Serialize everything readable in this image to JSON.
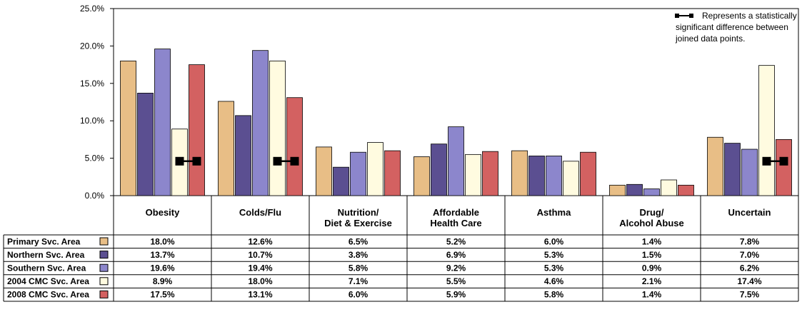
{
  "chart_data": {
    "type": "bar",
    "categories": [
      [
        "Obesity"
      ],
      [
        "Colds/Flu"
      ],
      [
        "Nutrition/",
        "Diet & Exercise"
      ],
      [
        "Affordable",
        "Health Care"
      ],
      [
        "Asthma"
      ],
      [
        "Drug/",
        "Alcohol Abuse"
      ],
      [
        "Uncertain"
      ]
    ],
    "series": [
      {
        "name": "Primary Svc. Area",
        "color": "#E8BE86",
        "values": [
          18.0,
          12.6,
          6.5,
          5.2,
          6.0,
          1.4,
          7.8
        ],
        "labels": [
          "18.0%",
          "12.6%",
          "6.5%",
          "5.2%",
          "6.0%",
          "1.4%",
          "7.8%"
        ]
      },
      {
        "name": "Northern Svc. Area",
        "color": "#5B4F91",
        "values": [
          13.7,
          10.7,
          3.8,
          6.9,
          5.3,
          1.5,
          7.0
        ],
        "labels": [
          "13.7%",
          "10.7%",
          "3.8%",
          "6.9%",
          "5.3%",
          "1.5%",
          "7.0%"
        ]
      },
      {
        "name": "Southern Svc. Area",
        "color": "#8C86CC",
        "values": [
          19.6,
          19.4,
          5.8,
          9.2,
          5.3,
          0.9,
          6.2
        ],
        "labels": [
          "19.6%",
          "19.4%",
          "5.8%",
          "9.2%",
          "5.3%",
          "0.9%",
          "6.2%"
        ]
      },
      {
        "name": "2004 CMC Svc. Area",
        "color": "#FFFBE0",
        "values": [
          8.9,
          18.0,
          7.1,
          5.5,
          4.6,
          2.1,
          17.4
        ],
        "labels": [
          "8.9%",
          "18.0%",
          "7.1%",
          "5.5%",
          "4.6%",
          "2.1%",
          "17.4%"
        ]
      },
      {
        "name": "2008 CMC Svc. Area",
        "color": "#D36161",
        "values": [
          17.5,
          13.1,
          6.0,
          5.9,
          5.8,
          1.4,
          7.5
        ],
        "labels": [
          "17.5%",
          "13.1%",
          "6.0%",
          "5.9%",
          "5.8%",
          "1.4%",
          "7.5%"
        ]
      }
    ],
    "ylim": [
      0,
      25
    ],
    "yticks": [
      "0.0%",
      "5.0%",
      "10.0%",
      "15.0%",
      "20.0%",
      "25.0%"
    ],
    "significance_markers": [
      {
        "category": "Obesity",
        "y": 4.6
      },
      {
        "category": "Colds/Flu",
        "y": 4.6
      },
      {
        "category": "Uncertain",
        "y": 4.6
      }
    ],
    "legend": {
      "position": "top-right",
      "text": [
        "Represents a statistically",
        "significant difference between",
        "joined data points."
      ]
    },
    "grid": false
  }
}
